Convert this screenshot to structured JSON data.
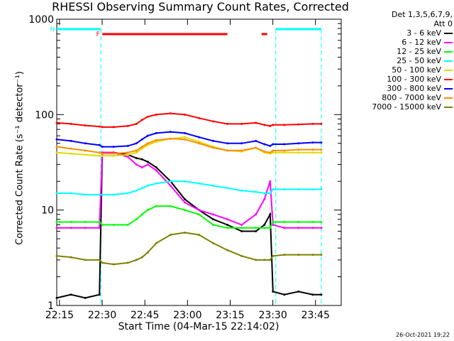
{
  "chart_data": {
    "type": "line",
    "title": "RHESSI Observing Summary Count Rates, Corrected",
    "xlabel": "Start Time (04-Mar-15 22:14:02)",
    "ylabel": "Corrected Count Rate (s⁻¹ detector⁻¹)",
    "ylog": true,
    "ylim": [
      1,
      1000
    ],
    "xlim_minutes": [
      0,
      100
    ],
    "x_tick_labels": [
      "22:15",
      "22:30",
      "22:45",
      "23:00",
      "23:15",
      "23:30",
      "23:45"
    ],
    "x_tick_minutes": [
      0.97,
      15.97,
      30.97,
      45.97,
      60.97,
      75.97,
      90.97
    ],
    "y_tick_labels": [
      "1",
      "10",
      "100",
      "1000"
    ],
    "y_tick_values": [
      1,
      10,
      100,
      1000
    ],
    "legend_header": [
      "Det 1,3,5,6,7,9,",
      "Att 0"
    ],
    "legend_position": "right",
    "x_minutes": [
      0,
      5,
      10,
      15,
      16,
      20,
      25,
      28,
      30,
      32,
      35,
      40,
      45,
      50,
      55,
      60,
      65,
      70,
      73,
      75,
      76,
      80,
      85,
      90,
      93
    ],
    "series": [
      {
        "name": "3 - 6 keV",
        "color": "#000000",
        "values": [
          1.2,
          1.3,
          1.2,
          1.3,
          40,
          40,
          38,
          35,
          34,
          32,
          28,
          20,
          13,
          10,
          8,
          7,
          6,
          6,
          7,
          9,
          1.4,
          1.3,
          1.4,
          1.3,
          1.3
        ]
      },
      {
        "name": "6 - 12 keV",
        "color": "#ff00ff",
        "values": [
          6.5,
          6.5,
          6.5,
          6.5,
          40,
          40,
          36,
          30,
          28,
          30,
          26,
          18,
          12,
          10,
          9,
          8,
          7,
          9,
          13,
          20,
          7,
          6.5,
          6.5,
          6.5,
          6.5
        ]
      },
      {
        "name": "12 - 25 keV",
        "color": "#00ff00",
        "values": [
          7.5,
          7.5,
          7.5,
          7.5,
          7,
          7,
          7,
          8,
          9,
          10,
          11,
          11,
          10,
          9,
          7,
          6.5,
          6.5,
          6.5,
          6.5,
          6.5,
          7.5,
          7.5,
          7.5,
          7.5,
          7.5
        ]
      },
      {
        "name": "25 - 50 keV",
        "color": "#00ffff",
        "values": [
          15,
          15,
          14.5,
          14.5,
          14.5,
          14.5,
          15,
          16,
          17,
          18,
          19,
          20,
          20,
          19,
          18,
          17,
          16,
          15.5,
          15,
          15,
          16.5,
          16.5,
          16.5,
          16.5,
          16.5
        ]
      },
      {
        "name": "50 - 100 keV",
        "color": "#dddd00",
        "values": [
          40,
          39,
          38,
          37,
          37,
          37,
          38,
          40,
          44,
          48,
          52,
          56,
          58,
          52,
          46,
          42,
          41,
          45,
          40,
          39,
          40,
          40,
          40,
          40,
          40
        ]
      },
      {
        "name": "100 - 300 keV",
        "color": "#ff0000",
        "values": [
          82,
          80,
          77,
          75,
          74,
          74,
          76,
          80,
          88,
          95,
          100,
          103,
          100,
          92,
          85,
          80,
          80,
          82,
          78,
          76,
          78,
          78,
          79,
          80,
          80
        ]
      },
      {
        "name": "300 - 800 keV",
        "color": "#0000ff",
        "values": [
          55,
          53,
          50,
          48,
          46,
          46,
          47,
          50,
          55,
          60,
          64,
          66,
          64,
          58,
          53,
          50,
          50,
          53,
          49,
          47,
          49,
          49,
          50,
          51,
          51
        ]
      },
      {
        "name": "800 - 7000 keV",
        "color": "#ff8c00",
        "values": [
          46,
          44,
          42,
          40,
          39,
          39,
          40,
          42,
          46,
          50,
          54,
          56,
          55,
          50,
          45,
          42,
          42,
          45,
          41,
          40,
          42,
          42,
          43,
          43,
          43
        ]
      },
      {
        "name": "7000 - 15000 keV",
        "color": "#808000",
        "values": [
          3.3,
          3.2,
          3.0,
          3.0,
          2.8,
          2.7,
          2.8,
          3.0,
          3.2,
          3.6,
          4.5,
          5.5,
          5.8,
          5.5,
          4.5,
          3.8,
          3.3,
          3.0,
          3.0,
          3.0,
          3.3,
          3.4,
          3.4,
          3.4,
          3.4
        ]
      }
    ],
    "flag_markers": [
      {
        "label": "F",
        "color": "#ff0000",
        "start_min": 16,
        "end_min": 60
      },
      {
        "label": "",
        "color": "#ff0000",
        "start_min": 72,
        "end_min": 74
      },
      {
        "label": "N",
        "color": "#00ffff",
        "start_min": 0,
        "end_min": 15.5
      },
      {
        "label": "",
        "color": "#00ffff",
        "start_min": 77,
        "end_min": 93
      }
    ],
    "night_boundaries_min": [
      15.5,
      77,
      93
    ]
  },
  "footer": {
    "timestamp": "26-Oct-2021 19:22"
  }
}
